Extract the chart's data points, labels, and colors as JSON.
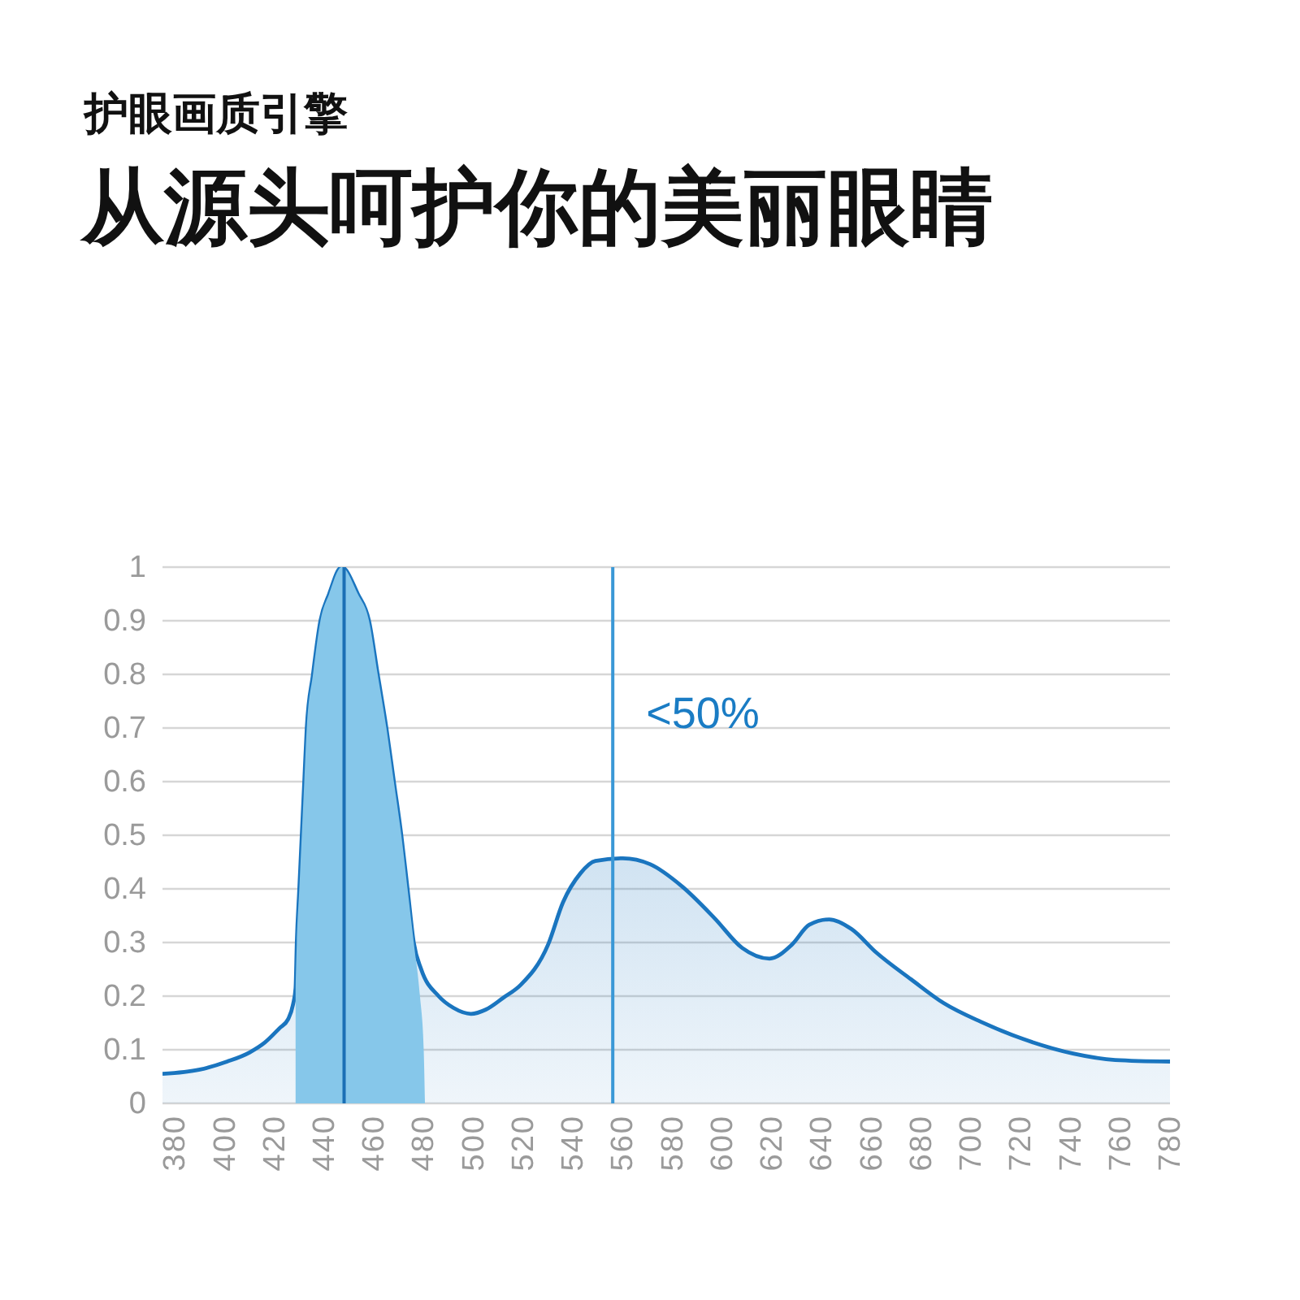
{
  "chart_data": {
    "type": "area",
    "title": "护眼画质引擎",
    "subtitle": "从源头呵护你的美丽眼睛",
    "series": [
      {
        "color": "#1a75bf",
        "x": [
          375,
          390,
          401,
          410,
          416,
          422,
          425.5,
          427.5,
          428.5,
          429,
          430,
          431,
          432,
          433,
          435.5,
          438.5,
          442,
          447,
          453.5,
          458,
          461.5,
          465,
          468,
          471,
          473.5,
          476,
          479,
          486,
          492,
          499,
          505,
          512,
          519,
          530,
          536,
          543,
          549,
          560,
          571,
          584,
          597,
          608,
          619,
          628,
          635,
          643,
          652,
          662,
          676,
          689,
          704,
          721,
          741,
          758,
          780
        ],
        "values": [
          0.055,
          0.063,
          0.078,
          0.095,
          0.113,
          0.14,
          0.157,
          0.185,
          0.215,
          0.3,
          0.4,
          0.5,
          0.6,
          0.7,
          0.8,
          0.9,
          0.95,
          1.0,
          0.95,
          0.9,
          0.8,
          0.7,
          0.6,
          0.5,
          0.4,
          0.3,
          0.25,
          0.2,
          0.178,
          0.167,
          0.175,
          0.197,
          0.221,
          0.296,
          0.375,
          0.429,
          0.452,
          0.457,
          0.446,
          0.404,
          0.345,
          0.29,
          0.27,
          0.296,
          0.333,
          0.343,
          0.325,
          0.281,
          0.231,
          0.187,
          0.152,
          0.12,
          0.093,
          0.081,
          0.078
        ]
      },
      {
        "color": "#86c7ea",
        "x": [
          428.5,
          429,
          430,
          431,
          432,
          433,
          435.5,
          438.5,
          442,
          447,
          453.5,
          458,
          461.5,
          465,
          468,
          471,
          473.5,
          476,
          478.5,
          480,
          480.5
        ],
        "values": [
          0.215,
          0.3,
          0.4,
          0.5,
          0.6,
          0.7,
          0.8,
          0.9,
          0.95,
          1.0,
          0.95,
          0.9,
          0.8,
          0.7,
          0.6,
          0.5,
          0.4,
          0.3,
          0.2,
          0.1,
          0
        ]
      }
    ],
    "xlim": [
      375,
      780
    ],
    "xticks": [
      380,
      400,
      420,
      440,
      460,
      480,
      500,
      520,
      540,
      560,
      580,
      600,
      620,
      640,
      660,
      680,
      700,
      720,
      740,
      760,
      780
    ],
    "ylim": [
      0,
      1
    ],
    "yticks": [
      0,
      0.1,
      0.2,
      0.3,
      0.4,
      0.5,
      0.6,
      0.7,
      0.8,
      0.9,
      1
    ],
    "ref_lines": [
      {
        "axis": "x",
        "value": 448,
        "color": "#1a6fb5"
      },
      {
        "axis": "x",
        "value": 556,
        "color": "#3a98d6"
      }
    ],
    "annotations": [
      "<50%"
    ],
    "grid": "y",
    "legend": false
  }
}
